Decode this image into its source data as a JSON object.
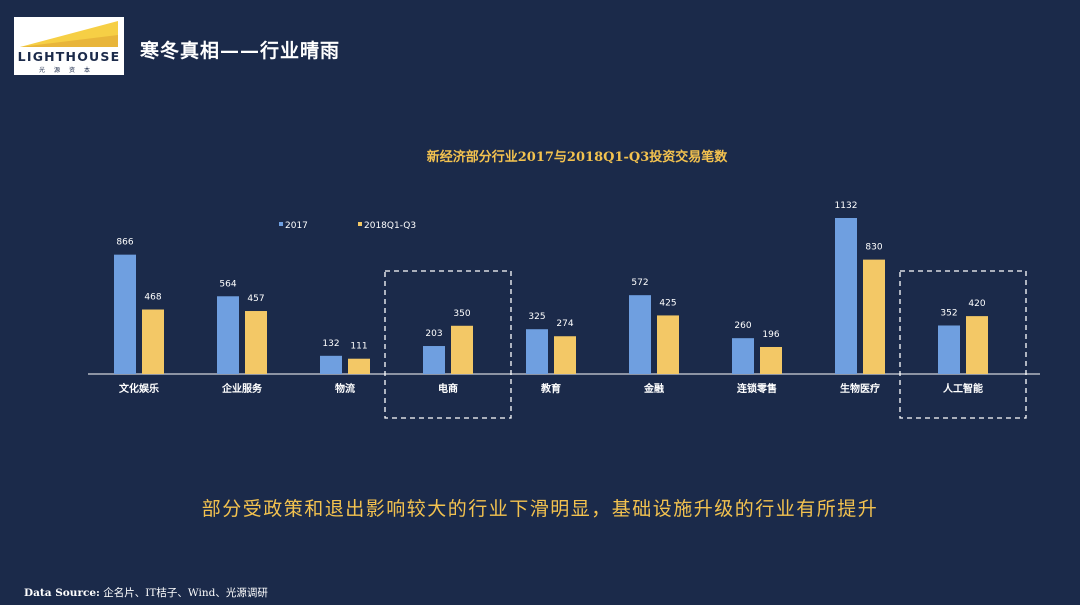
{
  "header": {
    "logo_text": "LIGHTHOUSE",
    "logo_subtext": "光源资本",
    "title": "寒冬真相——行业晴雨"
  },
  "colors": {
    "background": "#1b2a4a",
    "series_2017": "#6f9fe0",
    "series_2018": "#f3c866",
    "headline": "#f3c24f",
    "logo_accent": "#f6cf45"
  },
  "chart_data": {
    "type": "bar",
    "title": "新经济部分行业2017与2018Q1-Q3投资交易笔数",
    "xlabel": "",
    "ylabel": "",
    "ylim": [
      0,
      1200
    ],
    "grid": false,
    "legend": "top-left",
    "categories": [
      "文化娱乐",
      "企业服务",
      "物流",
      "电商",
      "教育",
      "金融",
      "连锁零售",
      "生物医疗",
      "人工智能"
    ],
    "series": [
      {
        "name": "2017",
        "values": [
          866,
          564,
          132,
          203,
          325,
          572,
          260,
          1132,
          352
        ]
      },
      {
        "name": "2018Q1-Q3",
        "values": [
          468,
          457,
          111,
          350,
          274,
          425,
          196,
          830,
          420
        ]
      }
    ],
    "highlighted_categories": [
      "电商",
      "人工智能"
    ]
  },
  "headline": "部分受政策和退出影响较大的行业下滑明显，基础设施升级的行业有所提升",
  "footer": {
    "source_label": "Data Source:",
    "source_text": " 企名片、IT桔子、Wind、光源调研"
  }
}
